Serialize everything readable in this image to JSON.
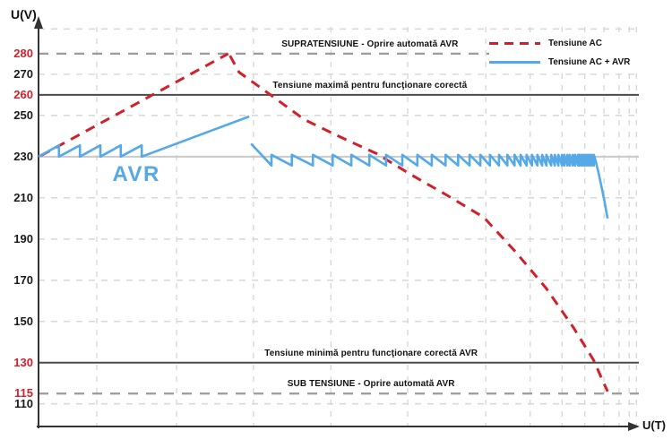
{
  "chart_data": {
    "type": "line",
    "title": "",
    "xlabel": "U(T)",
    "ylabel": "U(V)",
    "xlim": [
      0,
      100
    ],
    "ylim": [
      99,
      293
    ],
    "grid": true,
    "legend_position": "top-right",
    "colors": {
      "ac_red": "#d1202a",
      "avr_blue": "#55a9e6",
      "dark_line": "#4a4a4a",
      "gray_dash": "#9b9b9b",
      "light_grid": "#d9d9d9",
      "light_solid": "#c9c9c9",
      "text": "#111111"
    },
    "y_ticks": [
      {
        "label": "280",
        "v": 280,
        "color": "#d1202a"
      },
      {
        "label": "270",
        "v": 270,
        "color": "#1a1a1a"
      },
      {
        "label": "260",
        "v": 260,
        "color": "#d1202a"
      },
      {
        "label": "250",
        "v": 250,
        "color": "#1a1a1a"
      },
      {
        "label": "230",
        "v": 230,
        "color": "#1a1a1a"
      },
      {
        "label": "210",
        "v": 210,
        "color": "#1a1a1a"
      },
      {
        "label": "190",
        "v": 190,
        "color": "#1a1a1a"
      },
      {
        "label": "170",
        "v": 170,
        "color": "#1a1a1a"
      },
      {
        "label": "150",
        "v": 150,
        "color": "#1a1a1a"
      },
      {
        "label": "130",
        "v": 130,
        "color": "#d1202a"
      },
      {
        "label": "115",
        "v": 115,
        "color": "#d1202a"
      },
      {
        "label": "110",
        "v": 110,
        "color": "#1a1a1a"
      }
    ],
    "h_lines": [
      {
        "v": 292,
        "style": "light-dash"
      },
      {
        "v": 280,
        "style": "gray-dash"
      },
      {
        "v": 270,
        "style": "light-dash"
      },
      {
        "v": 260,
        "style": "dark-solid"
      },
      {
        "v": 250,
        "style": "light-dash"
      },
      {
        "v": 230,
        "style": "light-solid"
      },
      {
        "v": 210,
        "style": "light-dash"
      },
      {
        "v": 190,
        "style": "light-dash"
      },
      {
        "v": 170,
        "style": "light-dash"
      },
      {
        "v": 150,
        "style": "light-dash"
      },
      {
        "v": 130,
        "style": "dark-solid"
      },
      {
        "v": 115,
        "style": "gray-dash"
      },
      {
        "v": 110,
        "style": "light-dash"
      }
    ],
    "v_gridlines_t": [
      9.7,
      23.0,
      35.8,
      48.7,
      61.5,
      74.5,
      81.9,
      87.2,
      91.0,
      94.2,
      96.7,
      98.4,
      99.6
    ],
    "annotations": [
      {
        "id": "overvoltage",
        "text": "SUPRATENSIUNE - Oprire automată AVR",
        "above_v": 280,
        "t_center": 55.2
      },
      {
        "id": "max-voltage",
        "text": "Tensiune maximă pentru funcţionare corectă",
        "above_v": 260,
        "t_center": 55.2
      },
      {
        "id": "min-voltage",
        "text": "Tensiune minimă pentru funcţionare corectă AVR",
        "above_v": 130,
        "t_center": 55.4
      },
      {
        "id": "undervoltage",
        "text": "SUB TENSIUNE - Oprire automată AVR",
        "above_v": 115,
        "t_center": 55.4
      }
    ],
    "avr_label": {
      "text": "AVR",
      "t": 16.3,
      "v": 221
    },
    "series": [
      {
        "name": "Tensiune AC",
        "color": "#d1202a",
        "style": "dashed",
        "paths": [
          {
            "kind": "line",
            "points": [
              [
                0.4,
                230.5
              ],
              [
                31.6,
                280
              ]
            ]
          },
          {
            "kind": "line",
            "points": [
              [
                31.9,
                279
              ],
              [
                33.4,
                271
              ],
              [
                38.4,
                260.5
              ],
              [
                44.3,
                248
              ],
              [
                50.3,
                239.5
              ],
              [
                56.3,
                231.5
              ],
              [
                62.2,
                221
              ],
              [
                68.2,
                211
              ],
              [
                74.2,
                200.5
              ],
              [
                79.4,
                184
              ],
              [
                84.6,
                166
              ],
              [
                89.1,
                147
              ],
              [
                92.5,
                131
              ],
              [
                94.0,
                121
              ],
              [
                94.8,
                116
              ]
            ]
          }
        ]
      },
      {
        "name": "Tensiune AC + AVR",
        "color": "#55a9e6",
        "style": "solid",
        "paths": [
          {
            "kind": "saw_up",
            "start_t": 0,
            "base": 230,
            "peak": 235.5,
            "teeth_t": [
              3.4,
              6.9,
              10.3,
              13.7,
              17.2
            ],
            "ramp_to": [
              35.1,
              249.5
            ]
          },
          {
            "kind": "saw_down",
            "start": [
              35.4,
              236.3
            ],
            "top": 230.9,
            "bottom": 225.7,
            "teeth_t": [
              38.8,
              42.2,
              45.7,
              49.0,
              52.1,
              55.1,
              57.9,
              60.6,
              63.1,
              65.5,
              67.8,
              69.9,
              71.8,
              73.6,
              75.2,
              76.7,
              78.1,
              79.3,
              80.3,
              81.3,
              82.2,
              83.1,
              83.9,
              84.6,
              85.4,
              86.0,
              86.6,
              87.2,
              87.6,
              88.1,
              88.5,
              89.0,
              89.4,
              89.9,
              90.1,
              90.4,
              90.7,
              91.0,
              91.3,
              91.6,
              91.9,
              92.2,
              92.5
            ],
            "tail": [
              [
                92.8,
                228
              ],
              [
                93.3,
                222
              ],
              [
                93.8,
                215
              ],
              [
                94.3,
                208
              ],
              [
                94.6,
                203
              ],
              [
                94.8,
                200
              ]
            ]
          }
        ]
      }
    ]
  }
}
